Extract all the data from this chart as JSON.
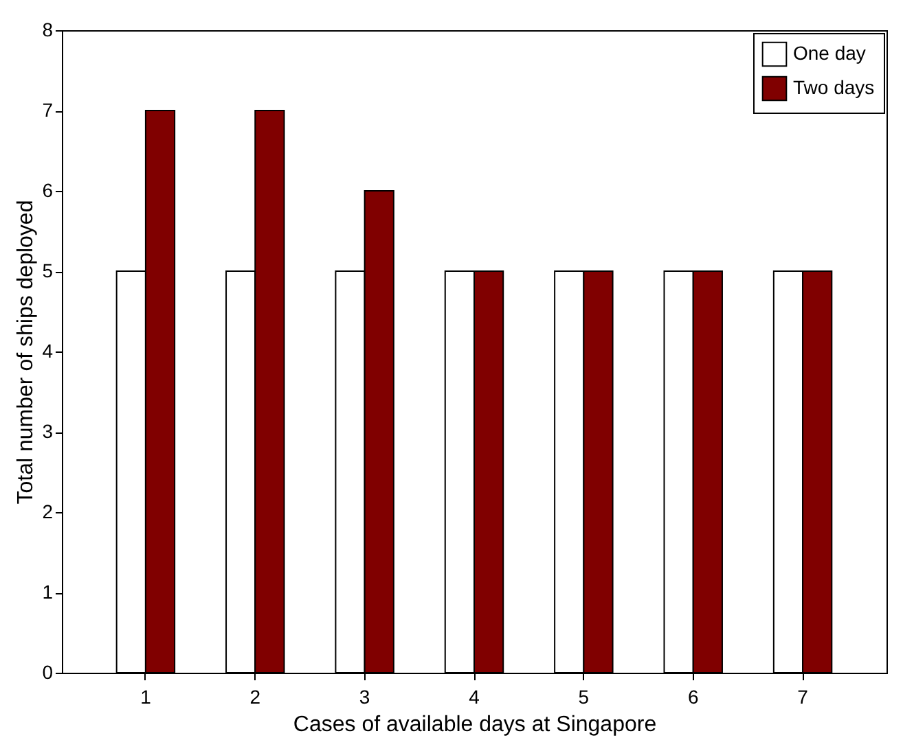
{
  "chart_data": {
    "type": "bar",
    "xlabel": "Cases of available days at Singapore",
    "ylabel": "Total number of ships deployed",
    "categories": [
      "1",
      "2",
      "3",
      "4",
      "5",
      "6",
      "7"
    ],
    "series": [
      {
        "name": "One day",
        "color": "#ffffff",
        "values": [
          5,
          5,
          5,
          5,
          5,
          5,
          5
        ]
      },
      {
        "name": "Two days",
        "color": "#800000",
        "values": [
          7,
          7,
          6,
          5,
          5,
          5,
          5
        ]
      }
    ],
    "ylim": [
      0,
      8
    ],
    "yticks": [
      0,
      1,
      2,
      3,
      4,
      5,
      6,
      7,
      8
    ],
    "grid": false,
    "legend": "top right"
  }
}
